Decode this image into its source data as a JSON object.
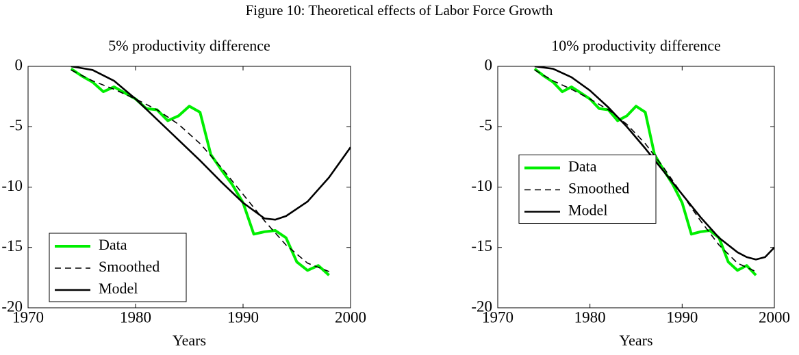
{
  "title": "Figure 10: Theoretical effects of Labor Force Growth",
  "chart_data": [
    {
      "type": "line",
      "title": "5% productivity difference",
      "xlabel": "Years",
      "xlim": [
        1970,
        2000
      ],
      "ylim": [
        -20,
        0
      ],
      "xticks": [
        1970,
        1980,
        1990,
        2000
      ],
      "yticks": [
        0,
        -5,
        -10,
        -15,
        -20
      ],
      "legend": "lower left",
      "series": [
        {
          "name": "Data",
          "color": "#00ee00",
          "style": "solid",
          "x": [
            1974,
            1975,
            1976,
            1977,
            1978,
            1979,
            1980,
            1981,
            1982,
            1983,
            1984,
            1985,
            1986,
            1987,
            1988,
            1989,
            1990,
            1991,
            1992,
            1993,
            1994,
            1995,
            1996,
            1997,
            1998
          ],
          "values": [
            -0.2,
            -0.8,
            -1.3,
            -2.1,
            -1.7,
            -2.2,
            -2.7,
            -3.5,
            -3.6,
            -4.5,
            -4.1,
            -3.3,
            -3.8,
            -7.3,
            -8.6,
            -9.8,
            -11.3,
            -13.9,
            -13.7,
            -13.6,
            -14.2,
            -16.2,
            -16.9,
            -16.5,
            -17.3
          ]
        },
        {
          "name": "Smoothed",
          "color": "#000000",
          "style": "dashed",
          "x": [
            1974,
            1976,
            1978,
            1980,
            1982,
            1984,
            1986,
            1988,
            1990,
            1992,
            1994,
            1996,
            1998
          ],
          "values": [
            -0.3,
            -1.2,
            -1.9,
            -2.7,
            -3.6,
            -4.8,
            -6.4,
            -8.4,
            -10.6,
            -12.8,
            -14.8,
            -16.3,
            -17.0
          ]
        },
        {
          "name": "Model",
          "color": "#000000",
          "style": "solid",
          "x": [
            1974,
            1976,
            1978,
            1980,
            1982,
            1984,
            1986,
            1988,
            1990,
            1992,
            1993,
            1994,
            1996,
            1998,
            2000
          ],
          "values": [
            0,
            -0.3,
            -1.2,
            -2.7,
            -4.4,
            -6.1,
            -7.8,
            -9.6,
            -11.3,
            -12.6,
            -12.7,
            -12.4,
            -11.2,
            -9.2,
            -6.7
          ]
        }
      ]
    },
    {
      "type": "line",
      "title": "10% productivity difference",
      "xlabel": "Years",
      "xlim": [
        1970,
        2000
      ],
      "ylim": [
        -20,
        0
      ],
      "xticks": [
        1970,
        1980,
        1990,
        2000
      ],
      "yticks": [
        0,
        -5,
        -10,
        -15,
        -20
      ],
      "legend": "center left",
      "series": [
        {
          "name": "Data",
          "color": "#00ee00",
          "style": "solid",
          "x": [
            1974,
            1975,
            1976,
            1977,
            1978,
            1979,
            1980,
            1981,
            1982,
            1983,
            1984,
            1985,
            1986,
            1987,
            1988,
            1989,
            1990,
            1991,
            1992,
            1993,
            1994,
            1995,
            1996,
            1997,
            1998
          ],
          "values": [
            -0.2,
            -0.8,
            -1.3,
            -2.1,
            -1.7,
            -2.2,
            -2.7,
            -3.5,
            -3.6,
            -4.5,
            -4.1,
            -3.3,
            -3.8,
            -7.3,
            -8.6,
            -9.8,
            -11.3,
            -13.9,
            -13.7,
            -13.6,
            -14.2,
            -16.2,
            -16.9,
            -16.5,
            -17.3
          ]
        },
        {
          "name": "Smoothed",
          "color": "#000000",
          "style": "dashed",
          "x": [
            1974,
            1976,
            1978,
            1980,
            1982,
            1984,
            1986,
            1988,
            1990,
            1992,
            1994,
            1996,
            1998
          ],
          "values": [
            -0.3,
            -1.2,
            -1.9,
            -2.7,
            -3.6,
            -4.8,
            -6.4,
            -8.4,
            -10.6,
            -12.8,
            -14.8,
            -16.3,
            -17.0
          ]
        },
        {
          "name": "Model",
          "color": "#000000",
          "style": "solid",
          "x": [
            1974,
            1976,
            1978,
            1980,
            1982,
            1984,
            1986,
            1988,
            1990,
            1992,
            1994,
            1996,
            1997,
            1998,
            1999,
            2000
          ],
          "values": [
            0,
            -0.2,
            -0.9,
            -2.0,
            -3.4,
            -5.0,
            -6.8,
            -8.7,
            -10.6,
            -12.5,
            -14.2,
            -15.4,
            -15.8,
            -16.0,
            -15.8,
            -15.0
          ]
        }
      ]
    }
  ]
}
